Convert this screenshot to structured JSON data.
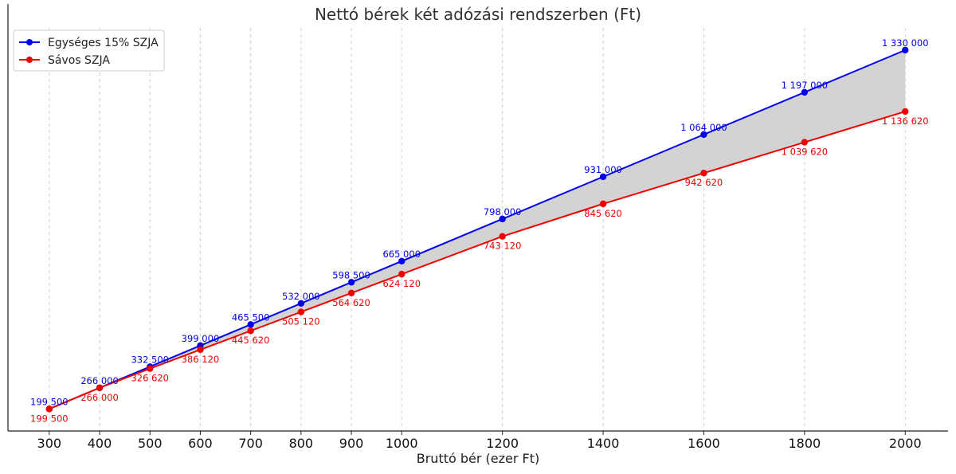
{
  "chart_data": {
    "type": "line",
    "title": "Nettó bérek két adózási rendszerben (Ft)",
    "xlabel": "Bruttó bér (ezer Ft)",
    "ylabel": "",
    "x": [
      300,
      400,
      500,
      600,
      700,
      800,
      900,
      1000,
      1200,
      1400,
      1600,
      1800,
      2000
    ],
    "x_tick_labels": [
      "300",
      "400",
      "500",
      "600",
      "700",
      "800",
      "900",
      "1000",
      "1200",
      "1400",
      "1600",
      "1800",
      "2000"
    ],
    "xlim": [
      218,
      2085
    ],
    "ylim": [
      130000,
      1400000
    ],
    "grid": "vertical dashed",
    "legend_position": "top-left",
    "fill_between": true,
    "fill_color": "#d3d3d3",
    "series": [
      {
        "name": "Egységes 15% SZJA",
        "color": "#0000ee",
        "values": [
          199500,
          266000,
          332500,
          399000,
          465500,
          532000,
          598500,
          665000,
          798000,
          931000,
          1064000,
          1197000,
          1330000
        ],
        "labels": [
          "199 500",
          "266 000",
          "332 500",
          "399 000",
          "465 500",
          "532 000",
          "598 500",
          "665 000",
          "798 000",
          "931 000",
          "1 064 000",
          "1 197 000",
          "1 330 000"
        ]
      },
      {
        "name": "Sávos SZJA",
        "color": "#ee0000",
        "values": [
          199500,
          266000,
          326620,
          386120,
          445620,
          505120,
          564620,
          624120,
          743120,
          845620,
          942620,
          1039620,
          1136620
        ],
        "labels": [
          "199 500",
          "266 000",
          "326 620",
          "386 120",
          "445 620",
          "505 120",
          "564 620",
          "624 120",
          "743 120",
          "845 620",
          "942 620",
          "1 039 620",
          "1 136 620"
        ]
      }
    ]
  }
}
